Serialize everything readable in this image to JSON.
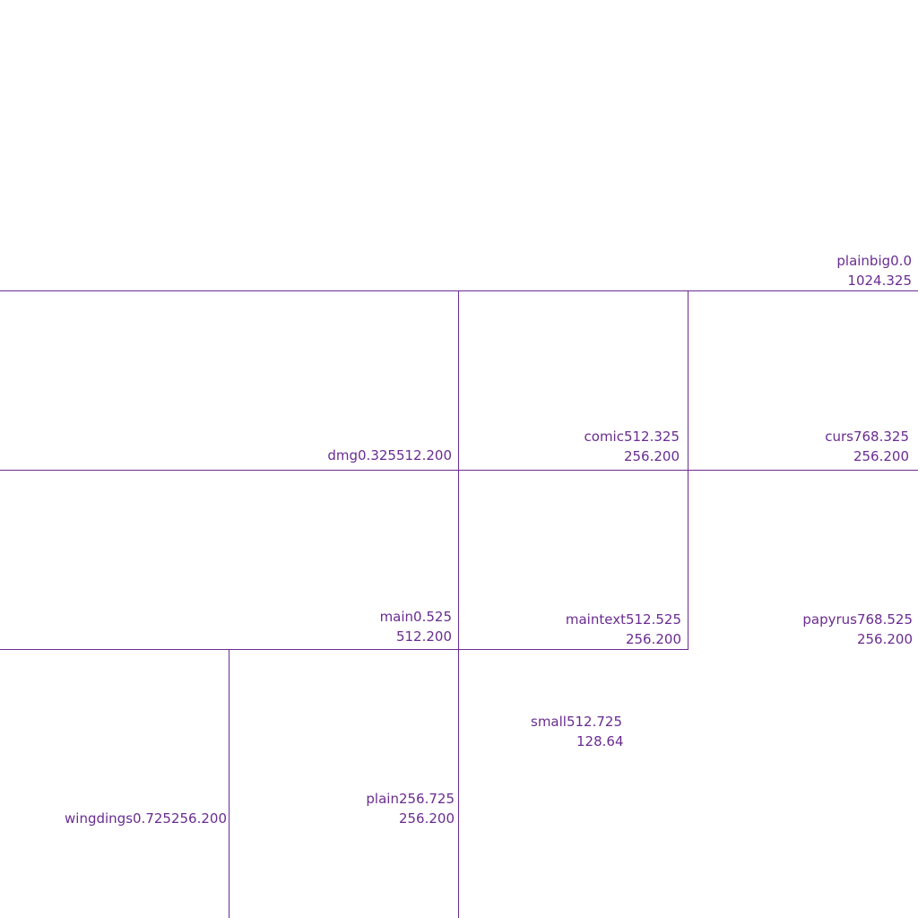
{
  "colors": {
    "line": "#6a2c91",
    "text": "#6a2c91",
    "background": "#ffffff"
  },
  "regions": [
    {
      "name": "plainbig",
      "pos": "0.0",
      "size": "1024.325"
    },
    {
      "name": "dmg",
      "pos": "0.325",
      "size": "512.200"
    },
    {
      "name": "comic",
      "pos": "512.325",
      "size": "256.200"
    },
    {
      "name": "curs",
      "pos": "768.325",
      "size": "256.200"
    },
    {
      "name": "main",
      "pos": "0.525",
      "size": "512.200"
    },
    {
      "name": "maintext",
      "pos": "512.525",
      "size": "256.200"
    },
    {
      "name": "papyrus",
      "pos": "768.525",
      "size": "256.200"
    },
    {
      "name": "small",
      "pos": "512.725",
      "size": "128.64"
    },
    {
      "name": "plain",
      "pos": "256.725",
      "size": "256.200"
    },
    {
      "name": "wingdings",
      "pos": "0.725",
      "size": "256.200"
    }
  ]
}
